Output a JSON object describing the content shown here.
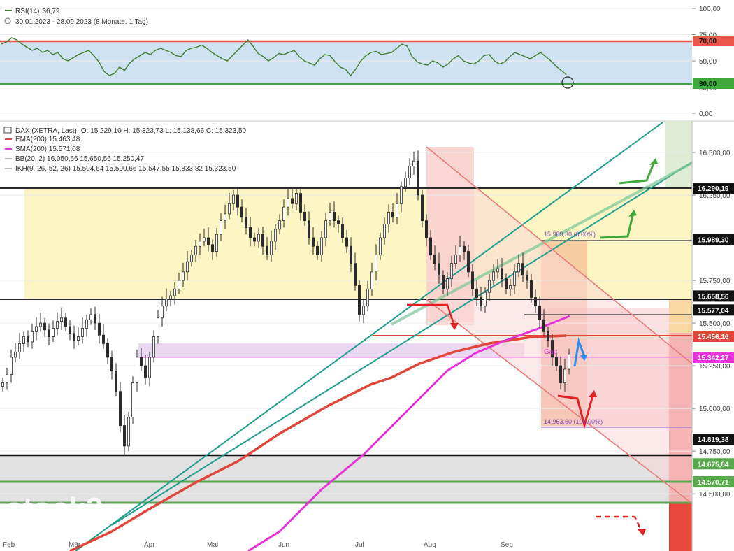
{
  "rsi_panel": {
    "indicator_label": "RSI(14)",
    "indicator_value": "36,79",
    "period_text": "30.01.2023 - 28.09.2023   (8 Monate, 1 Tag)",
    "y_ticks": [
      "100,00",
      "75,00",
      "50,00",
      "25,00",
      "0,00"
    ],
    "tag_high": "70,00",
    "tag_low": "30,00",
    "colors": {
      "line": "#3f7d2e",
      "upper": "#e8574a",
      "lower": "#3fa83a",
      "band": "#cfe2f1"
    }
  },
  "main_panel": {
    "header": "DAX (XETRA, Last)",
    "ohlc": "O: 15.229,10   H: 15.323,73   L: 15.138,66   C: 15.323,50",
    "legend": [
      {
        "name": "EMA(200)",
        "value": "15.463,48",
        "color": "#e0473a"
      },
      {
        "name": "SMA(200)",
        "value": "15.571,08",
        "color": "#e632d6"
      },
      {
        "name": "BB(20, 2)",
        "value": "16.050,66   15.650,56   15.250,47",
        "color": "#bbbbbb"
      },
      {
        "name": "IKH(9, 26, 52, 26)",
        "value": "15.504,64   15.590,66   15.547,55   15.833,82   15.323,50",
        "color": "#bbbbbb"
      }
    ],
    "y_ticks": [
      "16.500,00",
      "16.250,00",
      "15.750,00",
      "15.500,00",
      "15.250,00",
      "15.000,00",
      "14.750,00",
      "14.500,00"
    ],
    "level_tags": [
      {
        "label": "16.290,19",
        "bg": "#111111",
        "fg": "#ffffff"
      },
      {
        "label": "15.989,30",
        "bg": "#111111",
        "fg": "#ffffff"
      },
      {
        "label": "15.658,56",
        "bg": "#111111",
        "fg": "#ffffff"
      },
      {
        "label": "15.577,04",
        "bg": "#111111",
        "fg": "#ffffff"
      },
      {
        "label": "15.456,16",
        "bg": "#e0473a",
        "fg": "#ffffff"
      },
      {
        "label": "15.342,27",
        "bg": "#e632d6",
        "fg": "#ffffff"
      },
      {
        "label": "14.819,38",
        "bg": "#111111",
        "fg": "#ffffff"
      },
      {
        "label": "14.675,84",
        "bg": "#5aa84e",
        "fg": "#ffffff"
      },
      {
        "label": "14.570,71",
        "bg": "#5aa84e",
        "fg": "#ffffff"
      }
    ],
    "annotations": {
      "fib_top": "15.989,30 (0.00%)",
      "fib_bottom": "14.963,60 (100.00%)",
      "gap": "Gap"
    },
    "months": [
      "Feb",
      "Mär",
      "Apr",
      "Mai",
      "Jun",
      "Jul",
      "Aug",
      "Sep"
    ],
    "watermark": "stock3"
  },
  "chart_data": [
    {
      "type": "line",
      "title": "RSI(14)",
      "x_range": [
        "30.01.2023",
        "28.09.2023"
      ],
      "ylim": [
        0,
        100
      ],
      "levels": [
        70,
        30
      ],
      "last_value": 36.79,
      "series": [
        {
          "name": "RSI(14)",
          "values": [
            66,
            68,
            72,
            70,
            66,
            63,
            60,
            62,
            58,
            60,
            56,
            58,
            52,
            50,
            53,
            56,
            58,
            60,
            55,
            49,
            40,
            36,
            38,
            44,
            41,
            48,
            52,
            55,
            58,
            56,
            60,
            62,
            60,
            58,
            55,
            54,
            60,
            62,
            63,
            65,
            62,
            58,
            55,
            52,
            50,
            55,
            60,
            65,
            70,
            64,
            57,
            54,
            50,
            53,
            57,
            56,
            58,
            60,
            54,
            50,
            48,
            46,
            52,
            56,
            55,
            49,
            44,
            42,
            36,
            42,
            50,
            55,
            58,
            59,
            56,
            57,
            58,
            62,
            66,
            64,
            54,
            49,
            47,
            46,
            50,
            48,
            44,
            47,
            52,
            55,
            50,
            48,
            47,
            50,
            55,
            56,
            50,
            47,
            49,
            54,
            58,
            56,
            54,
            52,
            55,
            58,
            54,
            50,
            45,
            41,
            37
          ]
        }
      ]
    },
    {
      "type": "candlestick",
      "title": "DAX (XETRA, Last)",
      "x_range": [
        "30.01.2023",
        "28.09.2023"
      ],
      "ylim": [
        14350,
        16700
      ],
      "last": {
        "open": 15229.1,
        "high": 15323.73,
        "low": 15138.66,
        "close": 15323.5
      },
      "indicators": {
        "EMA(200)": 15463.48,
        "SMA(200)": 15571.08,
        "BB(20,2)": [
          16050.66,
          15650.56,
          15250.47
        ],
        "IKH(9,26,52,26)": [
          15504.64,
          15590.66,
          15547.55,
          15833.82,
          15323.5
        ]
      },
      "horizontal_levels": [
        16290.19,
        15989.3,
        15658.56,
        15577.04,
        15456.16,
        15342.27,
        14819.38,
        14675.84,
        14570.71
      ],
      "closes": [
        15150,
        15200,
        15300,
        15330,
        15380,
        15420,
        15390,
        15450,
        15480,
        15500,
        15460,
        15420,
        15470,
        15510,
        15530,
        15480,
        15440,
        15400,
        15420,
        15470,
        15520,
        15550,
        15500,
        15430,
        15380,
        15300,
        15220,
        15100,
        14900,
        14780,
        14950,
        15150,
        15300,
        15250,
        15180,
        15300,
        15420,
        15530,
        15600,
        15640,
        15660,
        15700,
        15750,
        15800,
        15860,
        15900,
        15950,
        15980,
        16000,
        15960,
        15920,
        16020,
        16100,
        16140,
        16200,
        16250,
        16180,
        16120,
        16060,
        16000,
        15980,
        16020,
        15950,
        15900,
        15980,
        16050,
        16100,
        16180,
        16230,
        16200,
        16260,
        16150,
        16100,
        16000,
        15950,
        15900,
        16000,
        16100,
        16150,
        16100,
        16080,
        16000,
        15950,
        15850,
        15720,
        15550,
        15600,
        15700,
        15800,
        15900,
        16000,
        16080,
        16150,
        16120,
        16200,
        16300,
        16350,
        16420,
        16450,
        16250,
        16100,
        16000,
        15900,
        15850,
        15780,
        15700,
        15760,
        15850,
        15900,
        15950,
        15920,
        15800,
        15700,
        15650,
        15600,
        15680,
        15750,
        15800,
        15820,
        15760,
        15700,
        15720,
        15800,
        15850,
        15780,
        15750,
        15650,
        15600,
        15520,
        15450,
        15400,
        15300,
        15250,
        15150,
        15230,
        15320
      ]
    }
  ]
}
